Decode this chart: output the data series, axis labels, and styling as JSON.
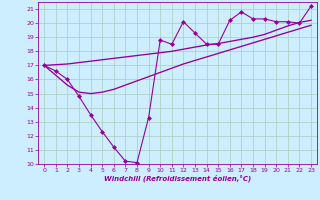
{
  "xlabel": "Windchill (Refroidissement éolien,°C)",
  "x_data": [
    0,
    1,
    2,
    3,
    4,
    5,
    6,
    7,
    8,
    9,
    10,
    11,
    12,
    13,
    14,
    15,
    16,
    17,
    18,
    19,
    20,
    21,
    22,
    23
  ],
  "y_main": [
    17.0,
    16.6,
    16.0,
    14.8,
    13.5,
    12.3,
    11.2,
    10.2,
    10.1,
    13.3,
    18.8,
    18.5,
    20.1,
    19.3,
    18.5,
    18.5,
    20.2,
    20.8,
    20.3,
    20.3,
    20.1,
    20.1,
    20.0,
    21.2
  ],
  "y_upper": [
    17.0,
    17.05,
    17.1,
    17.2,
    17.3,
    17.4,
    17.5,
    17.6,
    17.7,
    17.8,
    17.9,
    18.0,
    18.15,
    18.3,
    18.45,
    18.55,
    18.7,
    18.85,
    19.0,
    19.2,
    19.5,
    19.8,
    20.05,
    20.2
  ],
  "y_lower": [
    17.0,
    16.3,
    15.6,
    15.1,
    15.0,
    15.1,
    15.3,
    15.6,
    15.9,
    16.2,
    16.5,
    16.8,
    17.1,
    17.35,
    17.6,
    17.85,
    18.1,
    18.35,
    18.6,
    18.85,
    19.1,
    19.35,
    19.6,
    19.85
  ],
  "color": "#990099",
  "bg_color": "#cceeff",
  "grid_color": "#aaccbb",
  "ylim": [
    10,
    21.5
  ],
  "xlim": [
    -0.5,
    23.5
  ],
  "yticks": [
    10,
    11,
    12,
    13,
    14,
    15,
    16,
    17,
    18,
    19,
    20,
    21
  ],
  "xticks": [
    0,
    1,
    2,
    3,
    4,
    5,
    6,
    7,
    8,
    9,
    10,
    11,
    12,
    13,
    14,
    15,
    16,
    17,
    18,
    19,
    20,
    21,
    22,
    23
  ],
  "marker": "D",
  "markersize": 2.0,
  "linewidth": 0.8,
  "tick_fontsize": 4.5,
  "xlabel_fontsize": 5.0
}
